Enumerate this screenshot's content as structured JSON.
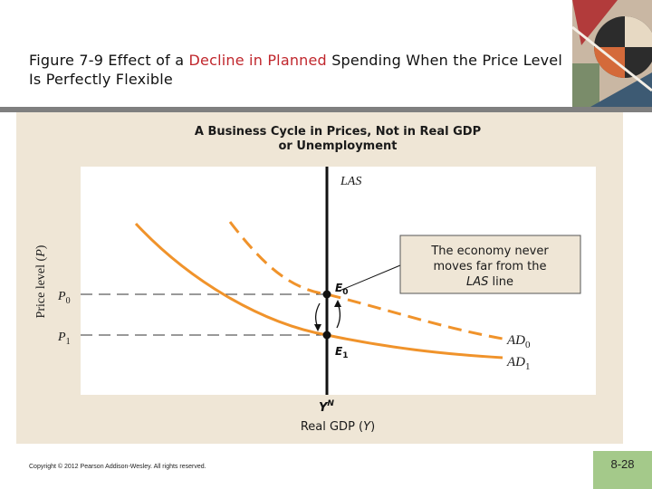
{
  "slide": {
    "title_part1": "Figure 7-9  Effect of a ",
    "title_highlight": "Decline in Planned",
    "title_part2": " Spending When the Price Level Is Perfectly Flexible",
    "copyright": "Copyright © 2012 Pearson Addison-Wesley. All rights reserved.",
    "page_number": "8-28",
    "highlight_color": "#c0272d"
  },
  "chart_data": {
    "type": "line",
    "title_line1": "A Business Cycle in Prices, Not in Real GDP",
    "title_line2": "or Unemployment",
    "xlabel_main": "Real GDP (",
    "xlabel_var": "Y",
    "xlabel_close": ")",
    "ylabel_main": "Price level (",
    "ylabel_var": "P",
    "ylabel_close": ")",
    "yN_base": "Y",
    "yN_sup": "N",
    "las_label": "LAS",
    "p0_base": "P",
    "p0_sub": "0",
    "p1_base": "P",
    "p1_sub": "1",
    "e0_base": "E",
    "e0_sub": "0",
    "e1_base": "E",
    "e1_sub": "1",
    "ad0_base": "AD",
    "ad0_sub": "0",
    "ad1_base": "AD",
    "ad1_sub": "1",
    "callout_line1": "The economy never",
    "callout_line2": "moves far from the",
    "callout_line3_var": "LAS",
    "callout_line3_rest": " line",
    "curve_color": "#f0932b",
    "series": [
      {
        "name": "AD0",
        "style": "dashed"
      },
      {
        "name": "AD1",
        "style": "solid"
      }
    ]
  }
}
